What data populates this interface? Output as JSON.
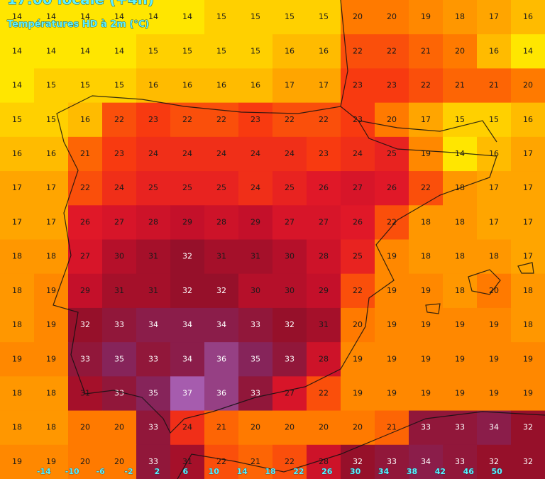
{
  "header": {
    "title": "17:00 locale (+4h)",
    "subtitle": "Températures HD à 2m (°C)"
  },
  "map": {
    "color_stops": [
      {
        "value": 14,
        "color": "#ffe600"
      },
      {
        "value": 17,
        "color": "#ffa500"
      },
      {
        "value": 20,
        "color": "#ff7a00"
      },
      {
        "value": 23,
        "color": "#f83a10"
      },
      {
        "value": 26,
        "color": "#e01828"
      },
      {
        "value": 29,
        "color": "#c4102a"
      },
      {
        "value": 32,
        "color": "#96102a"
      },
      {
        "value": 35,
        "color": "#86245a"
      },
      {
        "value": 37,
        "color": "#a65cae"
      }
    ],
    "temperatures": [
      [
        14,
        14,
        14,
        14,
        14,
        14,
        15,
        15,
        15,
        15,
        20,
        20,
        19,
        18,
        17,
        16
      ],
      [
        14,
        14,
        14,
        14,
        15,
        15,
        15,
        15,
        16,
        16,
        22,
        22,
        21,
        20,
        16,
        14
      ],
      [
        14,
        15,
        15,
        15,
        16,
        16,
        16,
        16,
        17,
        17,
        23,
        23,
        22,
        21,
        21,
        20
      ],
      [
        15,
        15,
        16,
        22,
        23,
        22,
        22,
        23,
        22,
        22,
        23,
        20,
        17,
        15,
        15,
        16
      ],
      [
        16,
        16,
        21,
        23,
        24,
        24,
        24,
        24,
        24,
        23,
        24,
        25,
        19,
        14,
        16,
        17
      ],
      [
        17,
        17,
        22,
        24,
        25,
        25,
        25,
        24,
        25,
        26,
        27,
        26,
        22,
        18,
        17,
        17
      ],
      [
        17,
        17,
        26,
        27,
        28,
        29,
        28,
        29,
        27,
        27,
        26,
        22,
        18,
        18,
        17,
        17
      ],
      [
        18,
        18,
        27,
        30,
        31,
        32,
        31,
        31,
        30,
        28,
        25,
        19,
        18,
        18,
        18,
        17
      ],
      [
        18,
        19,
        29,
        31,
        31,
        32,
        32,
        30,
        30,
        29,
        22,
        19,
        19,
        18,
        20,
        18
      ],
      [
        18,
        19,
        32,
        33,
        34,
        34,
        34,
        33,
        32,
        31,
        20,
        19,
        19,
        19,
        19,
        18
      ],
      [
        19,
        19,
        33,
        35,
        33,
        34,
        36,
        35,
        33,
        28,
        19,
        19,
        19,
        19,
        19,
        19
      ],
      [
        18,
        18,
        31,
        33,
        35,
        37,
        36,
        33,
        27,
        22,
        19,
        19,
        19,
        19,
        19,
        19
      ],
      [
        18,
        18,
        20,
        20,
        33,
        24,
        21,
        20,
        20,
        20,
        20,
        21,
        33,
        33,
        34,
        32
      ],
      [
        19,
        19,
        20,
        20,
        33,
        31,
        22,
        21,
        22,
        28,
        32,
        33,
        34,
        33,
        32,
        32
      ]
    ],
    "xlim": [
      -20.2,
      56.8
    ],
    "xticks": [
      -14,
      -10,
      -6,
      -2,
      2,
      6,
      10,
      14,
      18,
      22,
      26,
      30,
      34,
      38,
      42,
      46,
      50
    ]
  }
}
